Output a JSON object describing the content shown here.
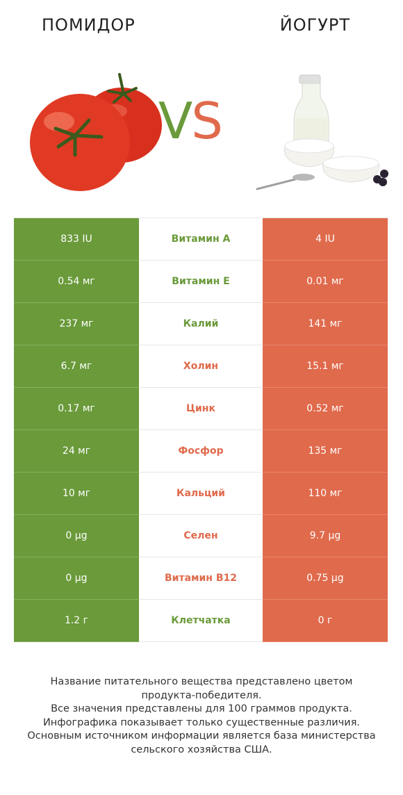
{
  "header": {
    "left_title": "ПОМИДОР",
    "right_title": "ЙОГУРТ",
    "vs_v": "V",
    "vs_s": "S"
  },
  "colors": {
    "left": "#6a9a3a",
    "right": "#e06a4c"
  },
  "rows": [
    {
      "left": "833 IU",
      "label": "Витамин A",
      "right": "4 IU",
      "winner": "left"
    },
    {
      "left": "0.54 мг",
      "label": "Витамин E",
      "right": "0.01 мг",
      "winner": "left"
    },
    {
      "left": "237 мг",
      "label": "Калий",
      "right": "141 мг",
      "winner": "left"
    },
    {
      "left": "6.7 мг",
      "label": "Холин",
      "right": "15.1 мг",
      "winner": "right"
    },
    {
      "left": "0.17 мг",
      "label": "Цинк",
      "right": "0.52 мг",
      "winner": "right"
    },
    {
      "left": "24 мг",
      "label": "Фосфор",
      "right": "135 мг",
      "winner": "right"
    },
    {
      "left": "10 мг",
      "label": "Кальций",
      "right": "110 мг",
      "winner": "right"
    },
    {
      "left": "0 µg",
      "label": "Селен",
      "right": "9.7 µg",
      "winner": "right"
    },
    {
      "left": "0 µg",
      "label": "Витамин B12",
      "right": "0.75 µg",
      "winner": "right"
    },
    {
      "left": "1.2 г",
      "label": "Клетчатка",
      "right": "0 г",
      "winner": "left"
    }
  ],
  "footer": {
    "lines": [
      "Название питательного вещества представлено цветом",
      "продукта-победителя.",
      "Все значения представлены для 100 граммов продукта.",
      "Инфографика показывает только существенные различия.",
      "Основным источником информации является база министерства",
      "сельского хозяйства США."
    ]
  }
}
